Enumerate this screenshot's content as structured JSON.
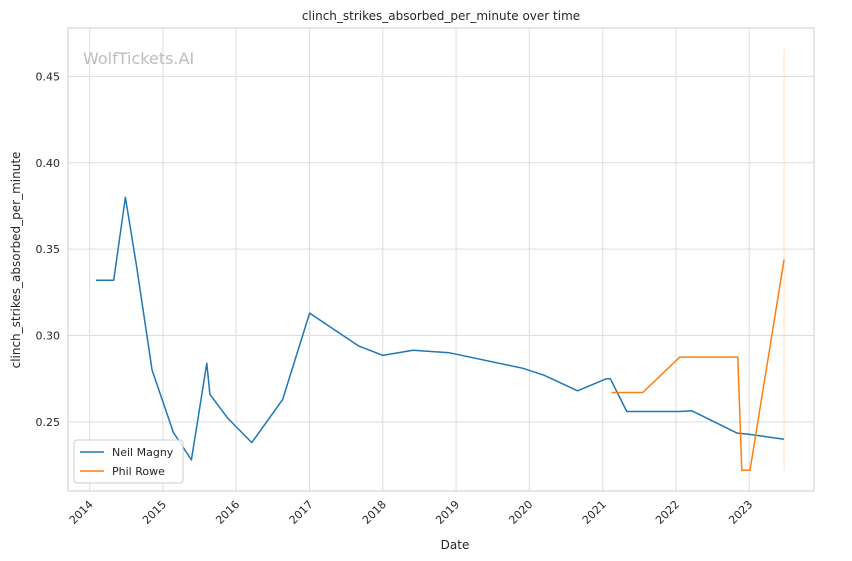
{
  "chart_data": {
    "type": "line",
    "title": "clinch_strikes_absorbed_per_minute over time",
    "xlabel": "Date",
    "ylabel": "clinch_strikes_absorbed_per_minute",
    "watermark": "WolfTickets.AI",
    "x_ticks": [
      "2014",
      "2015",
      "2016",
      "2017",
      "2018",
      "2019",
      "2020",
      "2021",
      "2022",
      "2023"
    ],
    "y_ticks": [
      "0.25",
      "0.30",
      "0.35",
      "0.40",
      "0.45"
    ],
    "xlim": [
      "2013-09-15",
      "2023-11-20"
    ],
    "ylim": [
      0.21,
      0.478
    ],
    "grid": true,
    "legend_position": "lower-left",
    "series": [
      {
        "name": "Neil Magny",
        "color": "#1f77b4",
        "points": [
          [
            "2014-02-01",
            0.332
          ],
          [
            "2014-05-01",
            0.332
          ],
          [
            "2014-06-28",
            0.38
          ],
          [
            "2014-08-23",
            0.34
          ],
          [
            "2014-11-08",
            0.28
          ],
          [
            "2015-02-22",
            0.244
          ],
          [
            "2015-05-23",
            0.228
          ],
          [
            "2015-08-08",
            0.284
          ],
          [
            "2015-08-23",
            0.266
          ],
          [
            "2015-11-21",
            0.252
          ],
          [
            "2016-03-19",
            0.238
          ],
          [
            "2016-08-20",
            0.263
          ],
          [
            "2017-01-01",
            0.313
          ],
          [
            "2017-09-02",
            0.294
          ],
          [
            "2018-01-01",
            0.2885
          ],
          [
            "2018-06-01",
            0.2915
          ],
          [
            "2018-11-30",
            0.29
          ],
          [
            "2019-11-30",
            0.281
          ],
          [
            "2020-03-14",
            0.277
          ],
          [
            "2020-08-29",
            0.268
          ],
          [
            "2021-01-20",
            0.275
          ],
          [
            "2021-02-08",
            0.275
          ],
          [
            "2021-05-01",
            0.256
          ],
          [
            "2022-01-20",
            0.256
          ],
          [
            "2022-03-20",
            0.2565
          ],
          [
            "2022-11-01",
            0.2435
          ],
          [
            "2022-12-20",
            0.243
          ],
          [
            "2023-06-24",
            0.24
          ]
        ]
      },
      {
        "name": "Phil Rowe",
        "color": "#ff7f0e",
        "points": [
          [
            "2021-02-15",
            0.267
          ],
          [
            "2021-07-20",
            0.267
          ],
          [
            "2022-01-20",
            0.2875
          ],
          [
            "2022-11-05",
            0.2875
          ],
          [
            "2022-11-25",
            0.222
          ],
          [
            "2023-01-05",
            0.222
          ],
          [
            "2023-06-24",
            0.344
          ]
        ],
        "error_range": {
          "date": "2023-06-24",
          "low": 0.222,
          "high": 0.466
        }
      }
    ]
  }
}
